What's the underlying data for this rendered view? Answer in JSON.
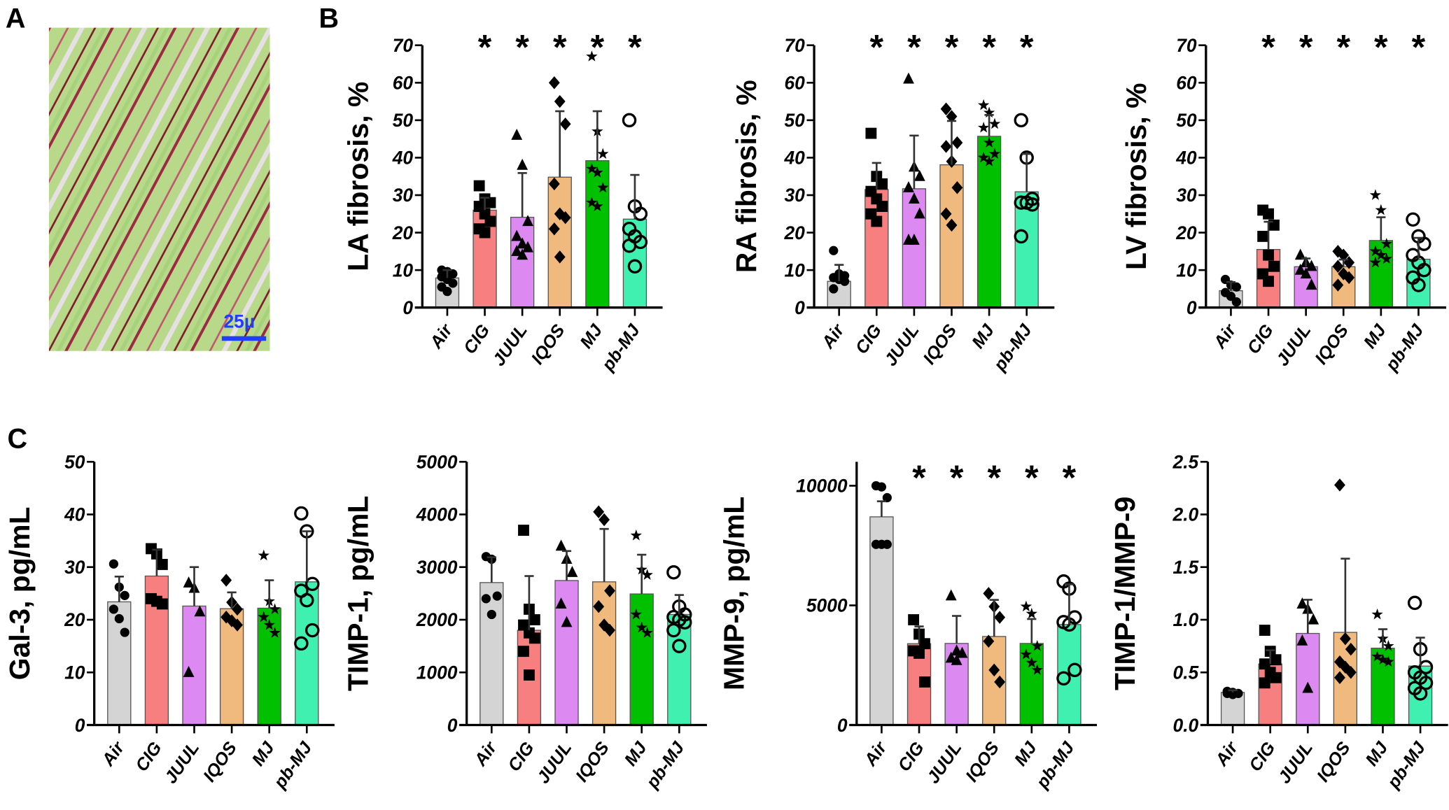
{
  "panel_labels": {
    "a": "A",
    "b": "B",
    "c": "C"
  },
  "micrograph": {
    "scale_bar_label": "25µ",
    "scale_bar_color": "#1f3cff"
  },
  "group_colors": {
    "Air": "#d4d4d4",
    "CIG": "#f77f7f",
    "JUUL": "#dc8af2",
    "IQOS": "#f0b97e",
    "MJ": "#00c000",
    "pb-MJ": "#40f0b0"
  },
  "chart_data": [
    {
      "id": "la",
      "type": "bar",
      "ylabel": "LA fibrosis, %",
      "ylim": [
        0,
        70
      ],
      "yticks": [
        0,
        10,
        20,
        30,
        40,
        50,
        60,
        70
      ],
      "categories": [
        "Air",
        "CIG",
        "JUUL",
        "IQOS",
        "MJ",
        "pb-MJ"
      ],
      "means": [
        7.9,
        26,
        24.1,
        34.8,
        39.2,
        23.6
      ],
      "sd": [
        2.1,
        3.3,
        11.8,
        17.6,
        13.2,
        11.8
      ],
      "significant": [
        false,
        true,
        true,
        true,
        true,
        true
      ],
      "significance_mark": "*",
      "points": [
        [
          10,
          9.6,
          9,
          8.2,
          7.5,
          6.5,
          5.5,
          4.3
        ],
        [
          32.5,
          29,
          28,
          27,
          25,
          23,
          21,
          20
        ],
        [
          46,
          38,
          23,
          19,
          17,
          16,
          15,
          14
        ],
        [
          60,
          55,
          49,
          33,
          25,
          24,
          21,
          13.5
        ],
        [
          67,
          47,
          41,
          37,
          36,
          32,
          28,
          27
        ],
        [
          50,
          27,
          25,
          21,
          19,
          17.5,
          16.5,
          11
        ]
      ]
    },
    {
      "id": "ra",
      "type": "bar",
      "ylabel": "RA fibrosis, %",
      "ylim": [
        0,
        70
      ],
      "yticks": [
        0,
        10,
        20,
        30,
        40,
        50,
        60,
        70
      ],
      "categories": [
        "Air",
        "CIG",
        "JUUL",
        "IQOS",
        "MJ",
        "pb-MJ"
      ],
      "means": [
        7,
        31.5,
        31.7,
        38.1,
        45.7,
        30.9
      ],
      "sd": [
        4.4,
        7.1,
        14.2,
        11.7,
        5.7,
        10.1
      ],
      "significant": [
        false,
        true,
        true,
        true,
        true,
        true
      ],
      "significance_mark": "*",
      "points": [
        [
          15.2,
          9,
          8.5,
          8,
          7.5,
          7,
          5
        ],
        [
          46.5,
          35,
          33,
          31,
          29,
          27,
          25,
          23
        ],
        [
          61,
          37.5,
          35,
          32,
          29,
          25,
          18,
          18
        ],
        [
          53,
          51,
          44,
          43,
          39,
          32,
          25,
          22
        ],
        [
          54,
          52,
          49,
          48,
          44,
          41,
          40,
          39
        ],
        [
          50,
          40,
          29,
          28,
          28,
          27.5,
          19
        ]
      ]
    },
    {
      "id": "lv",
      "type": "bar",
      "ylabel": "LV fibrosis, %",
      "ylim": [
        0,
        70
      ],
      "yticks": [
        0,
        10,
        20,
        30,
        40,
        50,
        60,
        70
      ],
      "categories": [
        "Air",
        "CIG",
        "JUUL",
        "IQOS",
        "MJ",
        "pb-MJ"
      ],
      "means": [
        4.5,
        15.5,
        10.9,
        10.9,
        17.9,
        12.9
      ],
      "sd": [
        2.3,
        7.4,
        2.2,
        1.9,
        6.2,
        5.7
      ],
      "significant": [
        false,
        true,
        true,
        true,
        true,
        true
      ],
      "significance_mark": "*",
      "points": [
        [
          7.5,
          6,
          5.5,
          4,
          3,
          1.5
        ],
        [
          26,
          25,
          22,
          19,
          14,
          11,
          9,
          7
        ],
        [
          14,
          12,
          11,
          10,
          9,
          6
        ],
        [
          15,
          14,
          12,
          11,
          9,
          8,
          6
        ],
        [
          30,
          26,
          17,
          15,
          14,
          13,
          12
        ],
        [
          23.5,
          19,
          17,
          14,
          12,
          10,
          8,
          6
        ]
      ]
    },
    {
      "id": "gal3",
      "type": "bar",
      "ylabel": "Gal-3, pg/mL",
      "ylim": [
        0,
        50
      ],
      "yticks": [
        0,
        10,
        20,
        30,
        40,
        50
      ],
      "categories": [
        "Air",
        "CIG",
        "JUUL",
        "IQOS",
        "MJ",
        "pb-MJ"
      ],
      "means": [
        23.4,
        28.3,
        22.6,
        22.1,
        22.2,
        27.2
      ],
      "sd": [
        4.8,
        5.0,
        7.4,
        3.1,
        5.3,
        9.6
      ],
      "significant": [
        false,
        false,
        false,
        false,
        false,
        false
      ],
      "significance_mark": "*",
      "points": [
        [
          30.6,
          26.2,
          24.6,
          22,
          20.2,
          17.6
        ],
        [
          33.5,
          32.5,
          30.5,
          24,
          23.5,
          23
        ],
        [
          27,
          26,
          21.5,
          10
        ],
        [
          27.5,
          23.3,
          22,
          20.5,
          19.8,
          19
        ],
        [
          32.2,
          23.5,
          22,
          20.5,
          19,
          17.5
        ],
        [
          40.2,
          36.8,
          26.8,
          25.5,
          23.7,
          18,
          15.5
        ]
      ]
    },
    {
      "id": "timp1",
      "type": "bar",
      "ylabel": "TIMP-1, pg/mL",
      "ylim": [
        0,
        5000
      ],
      "yticks": [
        0,
        1000,
        2000,
        3000,
        4000,
        5000
      ],
      "categories": [
        "Air",
        "CIG",
        "JUUL",
        "IQOS",
        "MJ",
        "pb-MJ"
      ],
      "means": [
        2706,
        1800,
        2745,
        2720,
        2490,
        2100
      ],
      "sd": [
        480,
        1030,
        560,
        1005,
        745,
        370
      ],
      "significant": [
        false,
        false,
        false,
        false,
        false,
        false
      ],
      "significance_mark": "*",
      "points": [
        [
          3200,
          3150,
          2450,
          2400,
          2100
        ],
        [
          3700,
          2200,
          2000,
          1900,
          1750,
          1650,
          1400,
          950
        ],
        [
          3400,
          3150,
          2900,
          2300,
          1950
        ],
        [
          4050,
          3900,
          2550,
          2250,
          1900,
          1800
        ],
        [
          3600,
          2950,
          2850,
          2100,
          1850,
          1750
        ],
        [
          2900,
          2250,
          2100,
          2050,
          2000,
          1950,
          1800,
          1500
        ]
      ]
    },
    {
      "id": "mmp9",
      "type": "bar",
      "ylabel": "MMP-9, pg/mL",
      "ylim": [
        0,
        11000
      ],
      "yticks": [
        0,
        5000,
        10000
      ],
      "categories": [
        "Air",
        "CIG",
        "JUUL",
        "IQOS",
        "MJ",
        "pb-MJ"
      ],
      "means": [
        8700,
        3400,
        3410,
        3700,
        3410,
        4200
      ],
      "sd": [
        650,
        720,
        1150,
        1530,
        1020,
        1680
      ],
      "significant": [
        false,
        true,
        true,
        true,
        true,
        true
      ],
      "significance_mark": "*",
      "points": [
        [
          10000,
          9950,
          9500,
          7550,
          7550,
          7550
        ],
        [
          4400,
          3800,
          3400,
          3100,
          3000,
          1800
        ],
        [
          5400,
          3100,
          3000,
          2800,
          2700
        ],
        [
          5500,
          4950,
          4500,
          3500,
          2300,
          1800
        ],
        [
          4950,
          4650,
          3300,
          2950,
          2600,
          2300
        ],
        [
          6000,
          5700,
          4500,
          4300,
          4200,
          2300,
          1950
        ]
      ]
    },
    {
      "id": "ratio",
      "type": "bar",
      "ylabel": "TIMP-1/MMP-9",
      "ylim": [
        0,
        2.5
      ],
      "yticks": [
        0.0,
        0.5,
        1.0,
        1.5,
        2.0,
        2.5
      ],
      "tick_decimals": 1,
      "categories": [
        "Air",
        "CIG",
        "JUUL",
        "IQOS",
        "MJ",
        "pb-MJ"
      ],
      "means": [
        0.31,
        0.58,
        0.87,
        0.88,
        0.73,
        0.56
      ],
      "sd": [
        0.02,
        0.13,
        0.32,
        0.7,
        0.18,
        0.27
      ],
      "significant": [
        false,
        false,
        false,
        false,
        false,
        false
      ],
      "significance_mark": "*",
      "points": [
        [
          0.32,
          0.31,
          0.3,
          0.3,
          0.29
        ],
        [
          0.9,
          0.7,
          0.62,
          0.58,
          0.5,
          0.45,
          0.4
        ],
        [
          1.15,
          1.1,
          1.0,
          0.8,
          0.35
        ],
        [
          2.28,
          0.82,
          0.72,
          0.6,
          0.55,
          0.5,
          0.45
        ],
        [
          1.05,
          0.82,
          0.75,
          0.65,
          0.62,
          0.6
        ],
        [
          1.16,
          0.72,
          0.55,
          0.5,
          0.45,
          0.4,
          0.35,
          0.3
        ]
      ]
    }
  ]
}
